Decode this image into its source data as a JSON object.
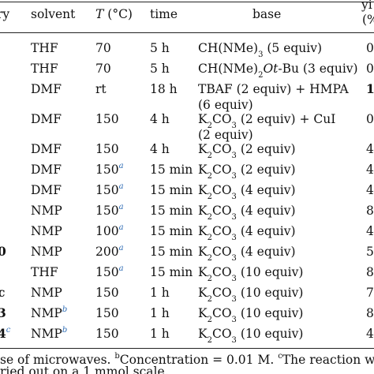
{
  "headers": {
    "entry": "ry",
    "solvent": "solvent",
    "temp_sym": "T",
    "temp_unit": " (°C)",
    "time": "time",
    "base": "base",
    "yield_top": "yi",
    "yield_bot": "(%"
  },
  "rows": [
    {
      "entry": "",
      "solvent": "THF",
      "solvent_sup": "",
      "temp": "70",
      "temp_sup": "",
      "time": "5 h",
      "base": "CH(NMe)",
      "base_sub": "3",
      "base_tail": " (5 equiv)",
      "yield": "0"
    },
    {
      "entry": "",
      "solvent": "THF",
      "solvent_sup": "",
      "temp": "70",
      "temp_sup": "",
      "time": "5 h",
      "base": "CH(NMe)",
      "base_sub": "2",
      "base_it": "Ot",
      "base_tail": "-Bu (3 equiv)",
      "yield": "0"
    },
    {
      "entry": "",
      "solvent": "DMF",
      "solvent_sup": "",
      "temp": "rt",
      "temp_sup": "",
      "time": "18 h",
      "base": "TBAF (2 equiv) + HMPA",
      "base_line2": "(6 equiv)",
      "yield": "1",
      "yield_bold": true
    },
    {
      "entry": "",
      "solvent": "DMF",
      "solvent_sup": "",
      "temp": "150",
      "temp_sup": "",
      "time": "4 h",
      "base": "K",
      "base_sub": "2",
      "base_tail": "CO",
      "base_sub2": "3",
      "base_tail2": " (2 equiv) + CuI",
      "base_line2": "(2 equiv)",
      "yield": "0"
    },
    {
      "entry": "",
      "solvent": "DMF",
      "solvent_sup": "",
      "temp": "150",
      "temp_sup": "",
      "time": "4 h",
      "base": "K",
      "base_sub": "2",
      "base_tail": "CO",
      "base_sub2": "3",
      "base_tail2": " (2 equiv)",
      "yield": "4"
    },
    {
      "entry": "",
      "solvent": "DMF",
      "solvent_sup": "",
      "temp": "150",
      "temp_sup": "a",
      "time": "15 min",
      "base": "K",
      "base_sub": "2",
      "base_tail": "CO",
      "base_sub2": "3",
      "base_tail2": " (2 equiv)",
      "yield": "4"
    },
    {
      "entry": "",
      "solvent": "DMF",
      "solvent_sup": "",
      "temp": "150",
      "temp_sup": "a",
      "time": "15 min",
      "base": "K",
      "base_sub": "2",
      "base_tail": "CO",
      "base_sub2": "3",
      "base_tail2": " (4 equiv)",
      "yield": "4"
    },
    {
      "entry": "",
      "solvent": "NMP",
      "solvent_sup": "",
      "temp": "150",
      "temp_sup": "a",
      "time": "15 min",
      "base": "K",
      "base_sub": "2",
      "base_tail": "CO",
      "base_sub2": "3",
      "base_tail2": " (4 equiv)",
      "yield": "8"
    },
    {
      "entry": "",
      "solvent": "NMP",
      "solvent_sup": "",
      "temp": "100",
      "temp_sup": "a",
      "time": "15 min",
      "base": "K",
      "base_sub": "2",
      "base_tail": "CO",
      "base_sub2": "3",
      "base_tail2": " (4 equiv)",
      "yield": "4"
    },
    {
      "entry": "0",
      "solvent": "NMP",
      "solvent_sup": "",
      "temp": "200",
      "temp_sup": "a",
      "time": "15 min",
      "base": "K",
      "base_sub": "2",
      "base_tail": "CO",
      "base_sub2": "3",
      "base_tail2": " (4 equiv)",
      "yield": "5"
    },
    {
      "entry": "",
      "solvent": "THF",
      "solvent_sup": "",
      "temp": "150",
      "temp_sup": "a",
      "time": "15 min",
      "base": "K",
      "base_sub": "2",
      "base_tail": "CO",
      "base_sub2": "3",
      "base_tail2": " (10 equiv)",
      "yield": "8"
    },
    {
      "entry": "",
      "solvent": "NMP",
      "solvent_sup": "",
      "temp": "150",
      "temp_sup": "",
      "time": "1 h",
      "base": "K",
      "base_sub": "2",
      "base_tail": "CO",
      "base_sub2": "3",
      "base_tail2": " (10 equiv)",
      "yield": "7"
    },
    {
      "entry": "",
      "solvent": "NMP",
      "solvent_sup": "b",
      "temp": "150",
      "temp_sup": "",
      "time": "1 h",
      "base": "K",
      "base_sub": "2",
      "base_tail": "CO",
      "base_sub2": "3",
      "base_tail2": " (10 equiv)",
      "yield": "8"
    },
    {
      "entry": "",
      "solvent": "NMP",
      "solvent_sup": "b",
      "temp": "150",
      "temp_sup": "",
      "time": "1 h",
      "base": "K",
      "base_sub": "2",
      "base_tail": "CO",
      "base_sub2": "3",
      "base_tail2": " (10 equiv)",
      "yield": "4"
    }
  ],
  "entry_marks": {
    "r12": "c",
    "r13": "3",
    "r14": "4",
    "r14_sup": "c"
  },
  "footnotes": {
    "line1_a": "se of microwaves. ",
    "sup_b": "b",
    "line1_b": "Concentration = 0.01 M. ",
    "sup_c": "c",
    "line1_c": "The reaction w",
    "line2": "ried out on a 1 mmol scale."
  },
  "colors": {
    "footnote_mark": "#2f6db5",
    "rule": "#222222"
  }
}
